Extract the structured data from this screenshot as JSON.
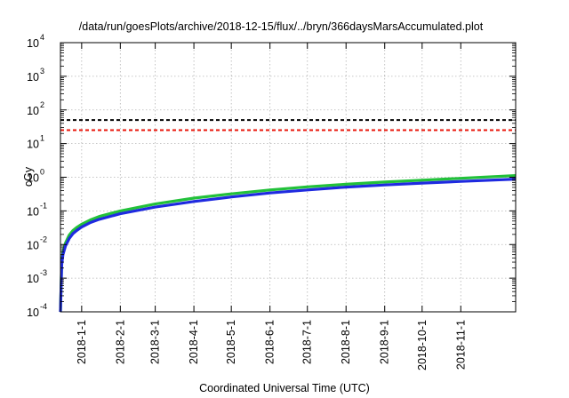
{
  "chart_data": {
    "type": "line",
    "title": "/data/run/goesPlots/archive/2018-12-15/flux/../bryn/366daysMarsAccumulated.plot",
    "xlabel": "Coordinated Universal Time (UTC)",
    "ylabel": "cGy",
    "yscale": "log",
    "ylim": [
      0.0001,
      10000
    ],
    "xlim": [
      "2017-12-15",
      "2018-12-15"
    ],
    "grid": true,
    "y_ticks": [
      {
        "value": 0.0001,
        "base": "10",
        "exp": "-4"
      },
      {
        "value": 0.001,
        "base": "10",
        "exp": "-3"
      },
      {
        "value": 0.01,
        "base": "10",
        "exp": "-2"
      },
      {
        "value": 0.1,
        "base": "10",
        "exp": "-1"
      },
      {
        "value": 1,
        "base": "10",
        "exp": "0"
      },
      {
        "value": 10,
        "base": "10",
        "exp": "1"
      },
      {
        "value": 100,
        "base": "10",
        "exp": "2"
      },
      {
        "value": 1000,
        "base": "10",
        "exp": "3"
      },
      {
        "value": 10000,
        "base": "10",
        "exp": "4"
      }
    ],
    "x_ticks": [
      "2018-1-1",
      "2018-2-1",
      "2018-3-1",
      "2018-4-1",
      "2018-5-1",
      "2018-6-1",
      "2018-7-1",
      "2018-8-1",
      "2018-9-1",
      "2018-10-1",
      "2018-11-1"
    ],
    "reference_lines": [
      {
        "value": 50,
        "color": "#000000",
        "style": "dashed"
      },
      {
        "value": 25,
        "color": "#e8140a",
        "style": "dashed"
      }
    ],
    "series": [
      {
        "color": "#22c13a",
        "x": [
          "2017-12-15",
          "2017-12-16",
          "2017-12-17",
          "2017-12-19",
          "2017-12-22",
          "2017-12-25",
          "2017-12-28",
          "2018-1-1",
          "2018-1-8",
          "2018-1-15",
          "2018-2-1",
          "2018-3-1",
          "2018-4-1",
          "2018-5-1",
          "2018-6-1",
          "2018-7-1",
          "2018-8-1",
          "2018-9-1",
          "2018-10-1",
          "2018-11-1",
          "2018-12-15"
        ],
        "y": [
          0.0001,
          0.003,
          0.006,
          0.011,
          0.019,
          0.026,
          0.032,
          0.04,
          0.054,
          0.068,
          0.1,
          0.16,
          0.24,
          0.32,
          0.42,
          0.52,
          0.62,
          0.72,
          0.82,
          0.93,
          1.12
        ]
      },
      {
        "color": "#1f2ae0",
        "x": [
          "2017-12-15",
          "2017-12-16",
          "2017-12-17",
          "2017-12-19",
          "2017-12-22",
          "2017-12-25",
          "2017-12-28",
          "2018-1-1",
          "2018-1-8",
          "2018-1-15",
          "2018-2-1",
          "2018-3-1",
          "2018-4-1",
          "2018-5-1",
          "2018-6-1",
          "2018-7-1",
          "2018-8-1",
          "2018-9-1",
          "2018-10-1",
          "2018-11-1",
          "2018-12-15"
        ],
        "y": [
          0.0001,
          0.0025,
          0.005,
          0.009,
          0.015,
          0.021,
          0.026,
          0.033,
          0.045,
          0.056,
          0.082,
          0.13,
          0.19,
          0.26,
          0.34,
          0.42,
          0.51,
          0.59,
          0.67,
          0.75,
          0.88
        ]
      }
    ]
  }
}
